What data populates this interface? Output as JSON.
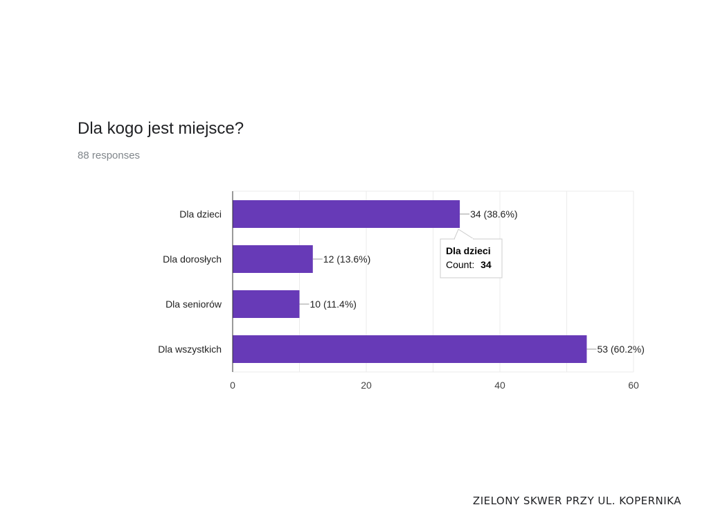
{
  "question": {
    "title": "Dla kogo jest miejsce?",
    "responses": "88 responses"
  },
  "chart_data": {
    "type": "bar",
    "orientation": "horizontal",
    "categories": [
      "Dla dzieci",
      "Dla dorosłych",
      "Dla seniorów",
      "Dla wszystkich"
    ],
    "values": [
      34,
      12,
      10,
      53
    ],
    "value_labels": [
      "34 (38.6%)",
      "12 (13.6%)",
      "10 (11.4%)",
      "53 (60.2%)"
    ],
    "xlim": [
      0,
      60
    ],
    "x_ticks": [
      "0",
      "20",
      "40",
      "60"
    ],
    "grid": true,
    "bar_color": "#673ab7"
  },
  "tooltip": {
    "title": "Dla dzieci",
    "count_label": "Count:",
    "count_value": "34"
  },
  "footer": "ZIELONY SKWER PRZY UL. KOPERNIKA"
}
